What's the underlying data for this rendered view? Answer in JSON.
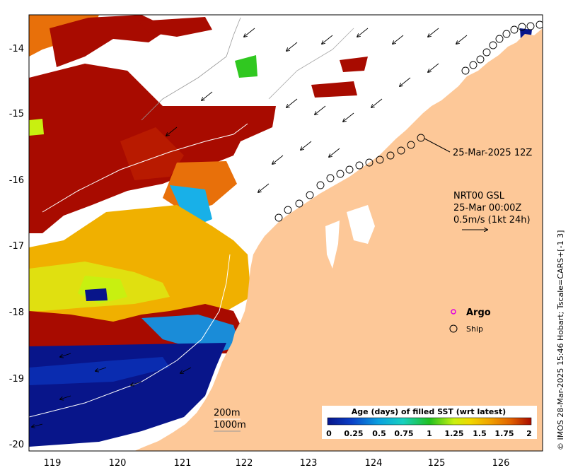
{
  "map": {
    "x_ticks": [
      "119",
      "120",
      "121",
      "122",
      "123",
      "124",
      "125",
      "126"
    ],
    "y_ticks": [
      "-14",
      "-15",
      "-16",
      "-17",
      "-18",
      "-19",
      "-20"
    ],
    "ship_track_date": "25-Mar-2025 12Z",
    "current_source": "NRT00 GSL",
    "current_date": "25-Mar 00:00Z",
    "current_scale": "0.5m/s (1kt 24h)",
    "legend_argo": "Argo",
    "legend_ship": "Ship",
    "contour_200": "200m",
    "contour_1000": "1000m",
    "credit": "© IMOS 28-Mar-2025 15:46 Hobart; Tscale=CARS+[-1 3]",
    "colorbar_title": "Age (days) of filled SST (wrt latest)",
    "colorbar_ticks": [
      "0",
      "0.25",
      "0.5",
      "0.75",
      "1",
      "1.25",
      "1.5",
      "1.75",
      "2"
    ],
    "colors": {
      "land": "#fdc898",
      "age_0": "#08158a",
      "age_2": "#a80b00",
      "argo": "#e000e0"
    }
  }
}
